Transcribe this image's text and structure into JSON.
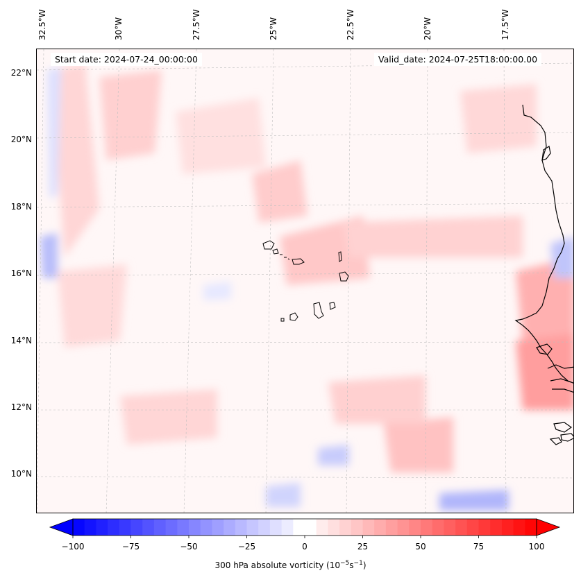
{
  "map": {
    "type": "contour-map",
    "variable": "300 hPa absolute vorticity",
    "start_date": "Start date: 2024-07-24_00:00:00",
    "valid_date": "Valid_date: 2024-07-25T18:00:00.00",
    "longitude_labels": [
      "32.5°W",
      "30°W",
      "27.5°W",
      "25°W",
      "22.5°W",
      "20°W",
      "17.5°W"
    ],
    "latitude_labels": [
      "22°N",
      "20°N",
      "18°N",
      "16°N",
      "14°N",
      "12°N",
      "10°N"
    ],
    "colorbar": {
      "label_prefix": "300 hPa absolute vorticity (10",
      "label_exp1": "−5",
      "label_mid": "s",
      "label_exp2": "−1",
      "label_suffix": ")",
      "ticks": [
        "−100",
        "−75",
        "−50",
        "−25",
        "0",
        "25",
        "50",
        "75",
        "100"
      ],
      "min": -100,
      "max": 100,
      "negative_color": "#0000ff",
      "zero_color": "#ffffff",
      "positive_color": "#ff0000"
    }
  }
}
